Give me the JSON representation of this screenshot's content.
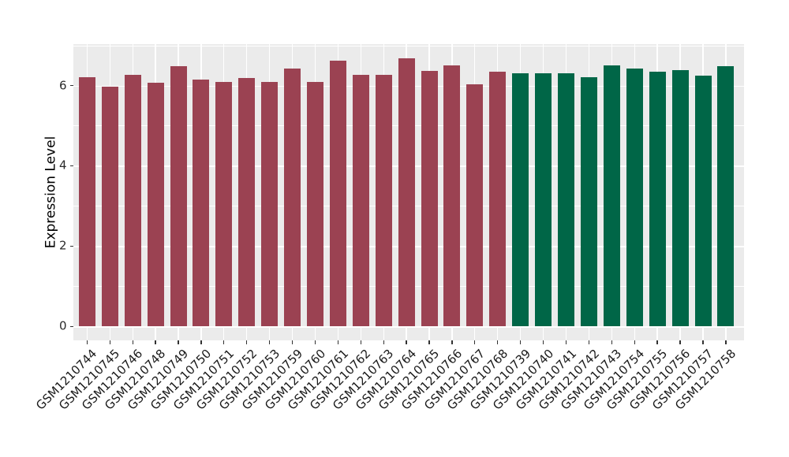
{
  "chart_data": {
    "type": "bar",
    "title": "",
    "xlabel": "",
    "ylabel": "Expression Level",
    "categories": [
      "GSM1210744",
      "GSM1210745",
      "GSM1210746",
      "GSM1210748",
      "GSM1210749",
      "GSM1210750",
      "GSM1210751",
      "GSM1210752",
      "GSM1210753",
      "GSM1210759",
      "GSM1210760",
      "GSM1210761",
      "GSM1210762",
      "GSM1210763",
      "GSM1210764",
      "GSM1210765",
      "GSM1210766",
      "GSM1210767",
      "GSM1210768",
      "GSM1210739",
      "GSM1210740",
      "GSM1210741",
      "GSM1210742",
      "GSM1210743",
      "GSM1210754",
      "GSM1210755",
      "GSM1210756",
      "GSM1210757",
      "GSM1210758"
    ],
    "values": [
      6.2,
      5.97,
      6.27,
      6.07,
      6.48,
      6.14,
      6.08,
      6.19,
      6.08,
      6.43,
      6.09,
      6.62,
      6.27,
      6.27,
      6.67,
      6.36,
      6.5,
      6.03,
      6.34,
      6.31,
      6.31,
      6.31,
      6.21,
      6.5,
      6.42,
      6.34,
      6.39,
      6.24,
      6.48
    ],
    "groups": [
      "A",
      "A",
      "A",
      "A",
      "A",
      "A",
      "A",
      "A",
      "A",
      "A",
      "A",
      "A",
      "A",
      "A",
      "A",
      "A",
      "A",
      "A",
      "A",
      "B",
      "B",
      "B",
      "B",
      "B",
      "B",
      "B",
      "B",
      "B",
      "B"
    ],
    "group_colors": {
      "A": "#9B4252",
      "B": "#006647"
    },
    "y_ticks": [
      0,
      2,
      4,
      6
    ],
    "y_minor_ticks": [
      1,
      3,
      5,
      7
    ],
    "ylim": [
      -0.35,
      7.06
    ],
    "grid": "on",
    "legend": "none",
    "panel_bg": "#EBEBEB",
    "grid_color": "#FFFFFF",
    "tick_color": "#333333"
  }
}
